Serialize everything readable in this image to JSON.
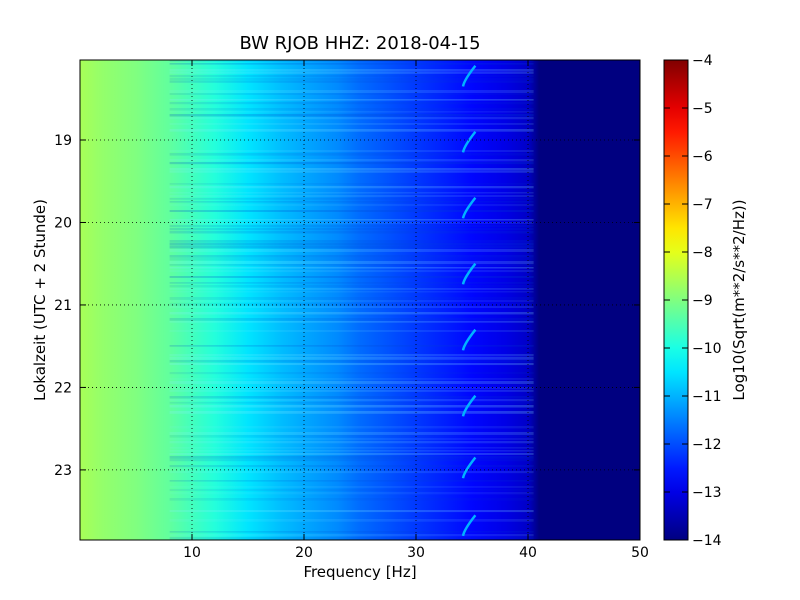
{
  "chart_data": {
    "type": "heatmap",
    "title": "BW RJOB HHZ: 2018-04-15",
    "xlabel": "Frequency [Hz]",
    "ylabel": "Lokalzeit (UTC + 2 Stunde)",
    "xlim": [
      0,
      50
    ],
    "ylim": [
      18.03,
      23.85
    ],
    "y_inverted": true,
    "x_ticks": [
      10,
      20,
      30,
      40,
      50
    ],
    "x_tick_labels": [
      "10",
      "20",
      "30",
      "40",
      "50"
    ],
    "y_ticks": [
      19,
      20,
      21,
      22,
      23
    ],
    "y_tick_labels": [
      "19",
      "20",
      "21",
      "22",
      "23"
    ],
    "grid": true,
    "colormap": "jet",
    "colorbar": {
      "label": "Log10(Sqrt(m**2/s**2/Hz))",
      "range": [
        -14,
        -4
      ],
      "ticks": [
        -14,
        -13,
        -12,
        -11,
        -10,
        -9,
        -8,
        -7,
        -6,
        -5,
        -4
      ],
      "tick_labels": [
        "−14",
        "−13",
        "−12",
        "−11",
        "−10",
        "−9",
        "−8",
        "−7",
        "−6",
        "−5",
        "−4"
      ]
    },
    "spectral_profile": {
      "frequency_hz": [
        0,
        2,
        5,
        8,
        10,
        12,
        15,
        18,
        20,
        23,
        25,
        28,
        30,
        33,
        35,
        38,
        40,
        41,
        50
      ],
      "level": [
        -8.6,
        -8.8,
        -9.0,
        -9.3,
        -9.6,
        -9.9,
        -10.5,
        -10.9,
        -11.1,
        -11.4,
        -11.7,
        -12.0,
        -12.2,
        -12.5,
        -12.7,
        -13.0,
        -13.3,
        -14.0,
        -14.0
      ]
    },
    "chirp_events": {
      "frequency_start_hz": 34.2,
      "frequency_end_hz": 35.3,
      "level": -11.0,
      "times": [
        18.35,
        19.15,
        19.95,
        20.75,
        21.55,
        22.35,
        23.1,
        23.8
      ]
    }
  }
}
